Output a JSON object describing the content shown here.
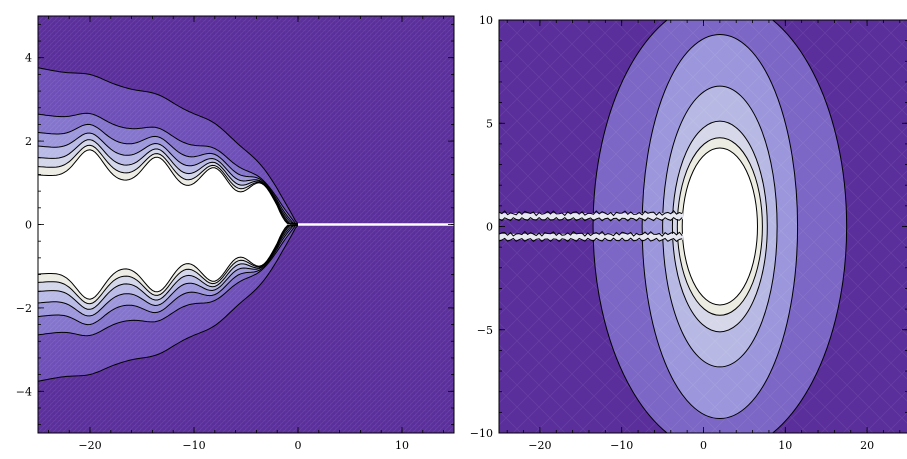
{
  "chart_data": [
    {
      "type": "heatmap",
      "subtype": "filled-contour",
      "title": "",
      "xlabel": "",
      "ylabel": "",
      "xlim": [
        -25,
        15
      ],
      "ylim": [
        -5,
        5
      ],
      "x_ticks": [
        -20,
        -10,
        0,
        10
      ],
      "y_ticks": [
        -4,
        -2,
        0,
        2,
        4
      ],
      "x_tick_labels": [
        "−20",
        "−10",
        "0",
        "10"
      ],
      "y_tick_labels": [
        "−4",
        "−2",
        "0",
        "2",
        "4"
      ],
      "colormap": [
        "#5b2f9b",
        "#6e4fb8",
        "#8474cc",
        "#9d97dc",
        "#b9bae6",
        "#d4d6ea",
        "#ecece4",
        "#ffffff"
      ],
      "cut_line": {
        "x_from": 0,
        "x_to": 15,
        "y": 0,
        "color": "#ffffff"
      },
      "contour_levels": [
        {
          "envelope": 3.85,
          "ripple": 0.1
        },
        {
          "envelope": 2.75,
          "ripple": 0.2
        },
        {
          "envelope": 2.35,
          "ripple": 0.35
        },
        {
          "envelope": 2.05,
          "ripple": 0.45
        },
        {
          "envelope": 1.8,
          "ripple": 0.55
        },
        {
          "envelope": 1.6,
          "ripple": 0.62
        },
        {
          "envelope": 1.42,
          "ripple": 0.7
        }
      ],
      "lobe_centers": [
        -20,
        -13.5,
        -8,
        -3.5
      ],
      "lobe_peak": 1.15,
      "tip_x": 0
    },
    {
      "type": "heatmap",
      "subtype": "filled-contour",
      "title": "",
      "xlabel": "",
      "ylabel": "",
      "xlim": [
        -25,
        25
      ],
      "ylim": [
        -10,
        10
      ],
      "x_ticks": [
        -20,
        -10,
        0,
        10,
        20
      ],
      "y_ticks": [
        -10,
        -5,
        0,
        5,
        10
      ],
      "x_tick_labels": [
        "−20",
        "−10",
        "0",
        "10",
        "20"
      ],
      "y_tick_labels": [
        "−10",
        "−5",
        "0",
        "5",
        "10"
      ],
      "colormap": [
        "#5b2f9b",
        "#7c67c6",
        "#9c97dc",
        "#b7b9e4",
        "#d6d8ea",
        "#ecece2",
        "#ffffff"
      ],
      "ellipse_center": [
        2,
        0
      ],
      "ellipse_levels": [
        {
          "rx": 15.5,
          "ry": 11.0
        },
        {
          "rx": 9.5,
          "ry": 9.3
        },
        {
          "rx": 7.0,
          "ry": 6.8
        },
        {
          "rx": 5.8,
          "ry": 5.1
        },
        {
          "rx": 5.2,
          "ry": 4.3
        },
        {
          "rx": 4.6,
          "ry": 3.8
        }
      ],
      "slits": {
        "x_from": -25,
        "x_to": -2.5,
        "y_upper": 0.5,
        "y_lower": -0.5
      }
    }
  ]
}
